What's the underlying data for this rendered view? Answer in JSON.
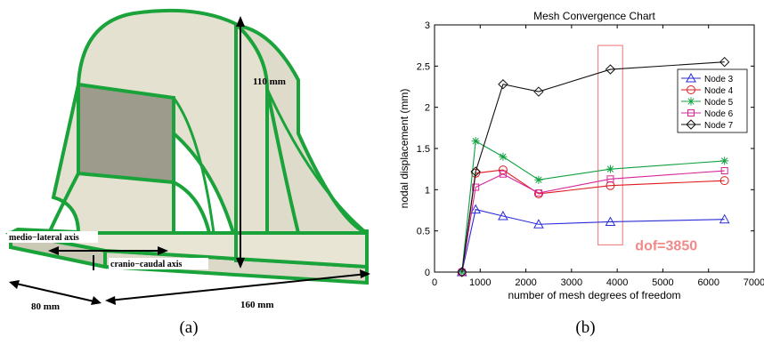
{
  "panel_a": {
    "caption": "(a)",
    "dims": {
      "height": "110 mm",
      "width": "160 mm",
      "depth": "80 mm"
    },
    "axes": {
      "medio_lateral": "medio−lateral axis",
      "cranio_caudal": "cranio−caudal axis"
    },
    "colors": {
      "edge": "#1aa33a",
      "face": "#dcd9c8",
      "face_dark": "#9d9c8c"
    }
  },
  "panel_b": {
    "caption": "(b)"
  },
  "chart_data": {
    "type": "line",
    "title": "Mesh Convergence Chart",
    "xlabel": "number of mesh degrees of freedom",
    "ylabel": "nodal displacement (mm)",
    "xlim": [
      0,
      7000
    ],
    "ylim": [
      0,
      3
    ],
    "xticks": [
      0,
      1000,
      2000,
      3000,
      4000,
      5000,
      6000,
      7000
    ],
    "yticks": [
      0,
      0.5,
      1,
      1.5,
      2,
      2.5,
      3
    ],
    "x": [
      600,
      900,
      1500,
      2280,
      3850,
      6350
    ],
    "legend_position": "top-right",
    "series": [
      {
        "name": "Node 3",
        "color": "#2b2bd8",
        "marker": "triangle",
        "values": [
          0,
          0.76,
          0.68,
          0.58,
          0.61,
          0.64
        ]
      },
      {
        "name": "Node 4",
        "color": "#e0191e",
        "marker": "circle",
        "values": [
          0,
          1.2,
          1.24,
          0.95,
          1.05,
          1.11
        ]
      },
      {
        "name": "Node 5",
        "color": "#10a040",
        "marker": "star",
        "values": [
          0,
          1.59,
          1.4,
          1.12,
          1.25,
          1.35
        ]
      },
      {
        "name": "Node 6",
        "color": "#d6259a",
        "marker": "square",
        "values": [
          0,
          1.03,
          1.19,
          0.96,
          1.13,
          1.23
        ]
      },
      {
        "name": "Node 7",
        "color": "#111111",
        "marker": "diamond",
        "values": [
          0,
          1.22,
          2.28,
          2.19,
          2.46,
          2.55
        ]
      }
    ],
    "annotation": {
      "text": "dof=3850",
      "color": "#f08a8a",
      "box_x": [
        3580,
        4120
      ],
      "box_y": [
        0.33,
        2.75
      ]
    }
  }
}
